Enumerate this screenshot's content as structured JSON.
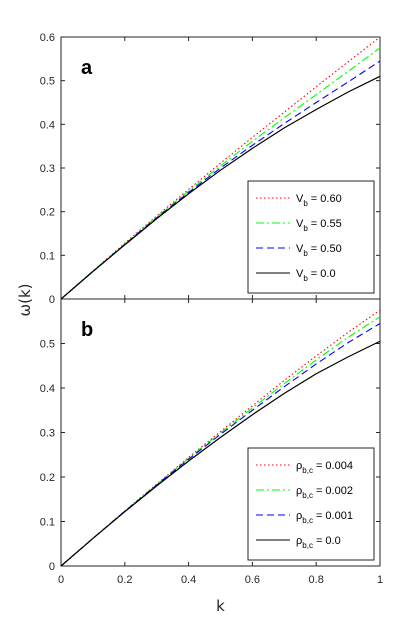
{
  "chart_data": [
    {
      "type": "line",
      "panel_letter": "a",
      "xlim": [
        0,
        1
      ],
      "ylim": [
        0,
        0.6
      ],
      "xticks": [
        "0",
        "0.2",
        "0.4",
        "0.6",
        "0.8",
        "1"
      ],
      "yticks": [
        "0",
        "0.1",
        "0.2",
        "0.3",
        "0.4",
        "0.5",
        "0.6"
      ],
      "show_xticklabels": false,
      "legend_placement": "bottom-right",
      "legend_symbol": "V",
      "legend_subscript": "b",
      "x": [
        0,
        0.1,
        0.2,
        0.3,
        0.4,
        0.5,
        0.6,
        0.7,
        0.8,
        0.9,
        1.0
      ],
      "series": [
        {
          "name": "= 0.60",
          "color": "#ff0000",
          "dash": "dotted",
          "y": [
            0,
            0.064,
            0.128,
            0.19,
            0.251,
            0.311,
            0.37,
            0.428,
            0.486,
            0.543,
            0.6
          ]
        },
        {
          "name": "= 0.55",
          "color": "#00ff00",
          "dash": "dashdot",
          "y": [
            0,
            0.064,
            0.126,
            0.188,
            0.247,
            0.305,
            0.361,
            0.415,
            0.468,
            0.521,
            0.575
          ]
        },
        {
          "name": "= 0.50",
          "color": "#0000ff",
          "dash": "dashed",
          "y": [
            0,
            0.063,
            0.125,
            0.186,
            0.244,
            0.3,
            0.352,
            0.402,
            0.45,
            0.497,
            0.545
          ]
        },
        {
          "name": "= 0.0",
          "color": "#000000",
          "dash": "solid",
          "y": [
            0,
            0.063,
            0.124,
            0.184,
            0.241,
            0.295,
            0.345,
            0.392,
            0.434,
            0.474,
            0.51
          ]
        }
      ]
    },
    {
      "type": "line",
      "panel_letter": "b",
      "xlim": [
        0,
        1
      ],
      "ylim": [
        0,
        0.6
      ],
      "xticks": [
        "0",
        "0.2",
        "0.4",
        "0.6",
        "0.8",
        "1"
      ],
      "yticks": [
        "0",
        "0.1",
        "0.2",
        "0.3",
        "0.4",
        "0.5"
      ],
      "show_xticklabels": true,
      "xlabel": "k",
      "legend_placement": "bottom-right",
      "legend_symbol": "ρ",
      "legend_subscript": "b,c",
      "x": [
        0,
        0.1,
        0.2,
        0.3,
        0.4,
        0.5,
        0.6,
        0.7,
        0.8,
        0.9,
        1.0
      ],
      "series": [
        {
          "name": "= 0.004",
          "color": "#ff0000",
          "dash": "dotted",
          "y": [
            0,
            0.062,
            0.124,
            0.184,
            0.244,
            0.302,
            0.36,
            0.417,
            0.472,
            0.525,
            0.575
          ]
        },
        {
          "name": "= 0.002",
          "color": "#00ff00",
          "dash": "dashdot",
          "y": [
            0,
            0.062,
            0.123,
            0.183,
            0.242,
            0.299,
            0.355,
            0.41,
            0.463,
            0.514,
            0.56
          ]
        },
        {
          "name": "= 0.001",
          "color": "#0000ff",
          "dash": "dashed",
          "y": [
            0,
            0.062,
            0.123,
            0.182,
            0.24,
            0.296,
            0.35,
            0.403,
            0.454,
            0.502,
            0.545
          ]
        },
        {
          "name": "= 0.0",
          "color": "#000000",
          "dash": "solid",
          "y": [
            0,
            0.062,
            0.122,
            0.18,
            0.236,
            0.289,
            0.34,
            0.388,
            0.432,
            0.47,
            0.505
          ]
        }
      ]
    }
  ],
  "shared_ylabel": "ω(k)"
}
